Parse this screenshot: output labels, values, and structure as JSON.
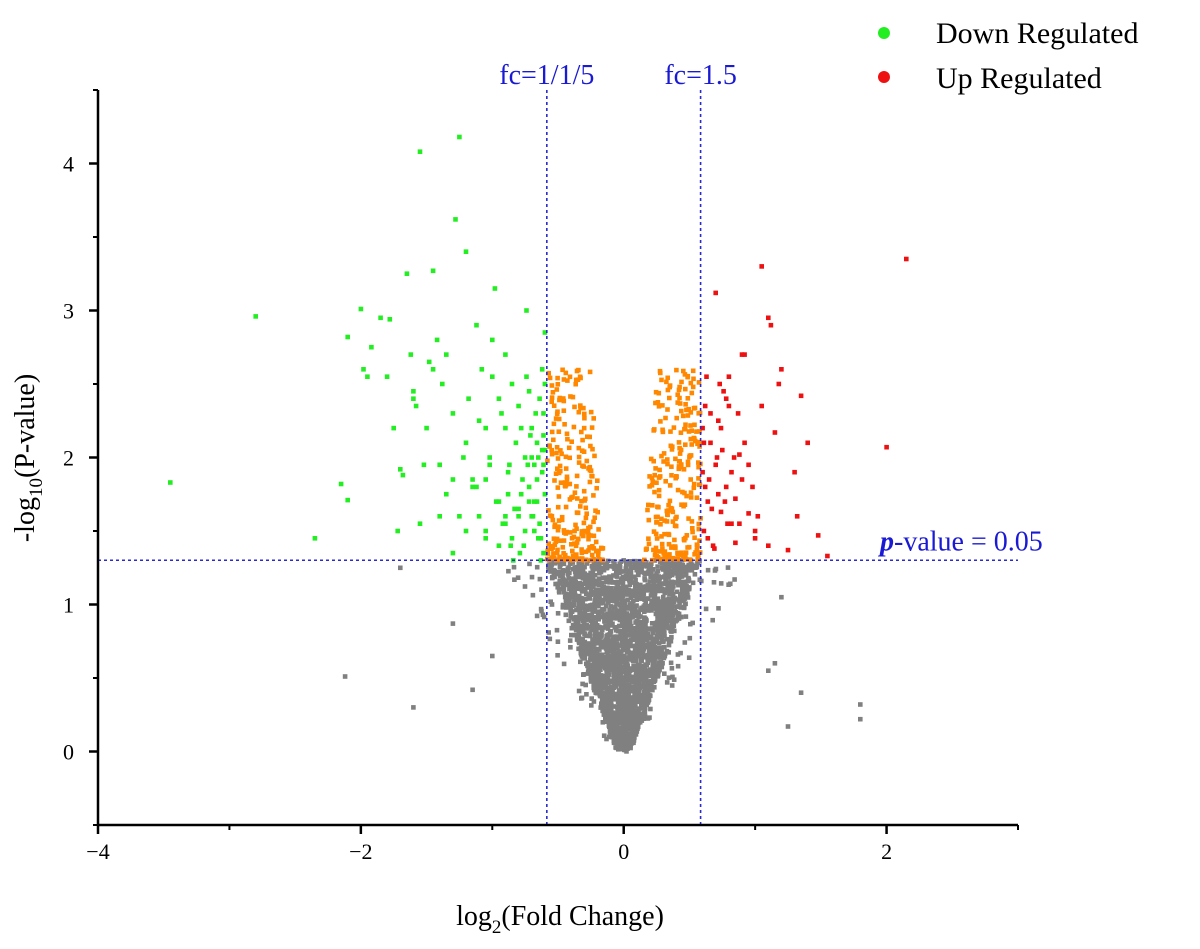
{
  "chart_data": {
    "type": "scatter",
    "title": "",
    "xlabel_base": "log",
    "xlabel_sub": "2",
    "xlabel_rest": "(Fold Change)",
    "ylabel_pre": "-log",
    "ylabel_sub": "10",
    "ylabel_rest": "(P-value)",
    "xlim": [
      -4,
      3
    ],
    "ylim": [
      -0.5,
      4.5
    ],
    "xticks": [
      -4,
      -2,
      0,
      2
    ],
    "yticks": [
      0,
      1,
      2,
      3,
      4
    ],
    "x_tick_labels": [
      "−4",
      "−2",
      "0",
      "2"
    ],
    "y_tick_labels": [
      "0",
      "1",
      "2",
      "3",
      "4"
    ],
    "reference_lines": {
      "vertical": [
        {
          "x": -0.585,
          "label": "fc=1/1/5"
        },
        {
          "x": 0.585,
          "label": "fc=1.5"
        }
      ],
      "horizontal": [
        {
          "y": 1.301,
          "label_bold": "p",
          "label_rest": "-value = 0.05"
        }
      ]
    },
    "colors": {
      "down": "#22ee22",
      "up": "#ee1111",
      "fc_only": "#ff8800",
      "ns": "#808080",
      "ref_line": "#2a2ad0"
    },
    "legend": {
      "placement": "top-right",
      "entries": [
        {
          "name": "Down Regulated",
          "color": "#22ee22"
        },
        {
          "name": "Up Regulated",
          "color": "#ee1111"
        }
      ]
    },
    "series": [
      {
        "name": "Down Regulated",
        "color": "#22ee22",
        "x": [
          -3.45,
          -2.8,
          -2.35,
          -2.15,
          -2.1,
          -2.1,
          -2.0,
          -1.98,
          -1.95,
          -1.92,
          -1.85,
          -1.8,
          -1.78,
          -1.72,
          -1.7,
          -1.68,
          -1.65,
          -1.62,
          -1.6,
          -1.55,
          -1.52,
          -1.5,
          -1.45,
          -1.42,
          -1.4,
          -1.38,
          -1.35,
          -1.3,
          -1.3,
          -1.28,
          -1.25,
          -1.22,
          -1.2,
          -1.2,
          -1.18,
          -1.15,
          -1.12,
          -1.1,
          -1.08,
          -1.05,
          -1.05,
          -1.02,
          -1.0,
          -0.98,
          -0.95,
          -0.95,
          -0.92,
          -0.9,
          -0.9,
          -0.88,
          -0.85,
          -0.85,
          -0.82,
          -0.8,
          -0.8,
          -0.78,
          -0.78,
          -0.75,
          -0.75,
          -0.72,
          -0.72,
          -0.7,
          -0.7,
          -0.68,
          -0.68,
          -0.66,
          -0.66,
          -0.64,
          -0.64,
          -0.62,
          -0.62,
          -0.61,
          -0.61,
          -0.6,
          -0.6,
          -0.6,
          -1.75,
          -1.58,
          -1.48,
          -1.35,
          -1.15,
          -0.97,
          -0.87,
          -0.76,
          -1.55,
          -1.45,
          -1.25,
          -1.05,
          -0.93,
          -0.83,
          -0.73,
          -0.65,
          -1.6,
          -1.4,
          -1.1,
          -1.0,
          -0.88,
          -0.74,
          -0.67,
          -1.2,
          -0.95,
          -0.8,
          -0.7,
          -0.63,
          -1.3,
          -1.05,
          -0.9,
          -0.77,
          -0.69,
          -0.62,
          -1.12,
          -0.86,
          -0.72,
          -0.65,
          -1.02,
          -0.84,
          -0.71,
          -0.61,
          -0.9,
          -0.79,
          -0.68,
          -0.63,
          -0.6,
          -0.74,
          -0.66,
          -0.61
        ],
        "y": [
          1.83,
          2.96,
          1.45,
          1.82,
          1.71,
          2.82,
          3.01,
          2.6,
          2.55,
          2.75,
          2.95,
          2.55,
          2.94,
          1.5,
          1.92,
          1.88,
          3.25,
          2.7,
          2.4,
          4.08,
          1.95,
          2.2,
          3.27,
          2.8,
          1.6,
          2.5,
          2.7,
          1.35,
          2.3,
          3.62,
          4.18,
          2.0,
          1.5,
          3.4,
          2.4,
          1.8,
          2.9,
          1.6,
          2.6,
          1.45,
          2.2,
          2.0,
          2.8,
          3.15,
          1.7,
          2.4,
          1.55,
          2.2,
          2.7,
          1.9,
          1.45,
          2.5,
          2.1,
          1.6,
          2.35,
          1.75,
          2.2,
          1.5,
          2.0,
          1.8,
          2.45,
          1.6,
          2.2,
          1.5,
          1.95,
          1.7,
          2.1,
          1.55,
          2.4,
          1.9,
          2.6,
          1.35,
          2.15,
          1.75,
          2.5,
          2.85,
          2.2,
          2.35,
          2.65,
          1.75,
          1.85,
          1.7,
          1.95,
          1.4,
          1.55,
          2.6,
          1.6,
          1.85,
          2.3,
          1.65,
          1.95,
          1.45,
          2.45,
          1.95,
          2.25,
          2.55,
          1.75,
          2.55,
          2.3,
          2.1,
          1.4,
          1.65,
          2.0,
          1.3,
          1.85,
          1.5,
          1.6,
          1.85,
          1.6,
          2.05,
          1.8,
          1.4,
          1.7,
          2.0,
          1.95,
          1.3,
          2.15,
          1.95,
          1.55,
          1.35,
          1.7,
          1.45,
          2.05,
          3.0,
          1.85,
          2.3
        ]
      },
      {
        "name": "Up Regulated",
        "color": "#ee1111",
        "x": [
          2.15,
          2.0,
          1.55,
          1.48,
          1.4,
          1.35,
          1.3,
          1.25,
          1.2,
          1.15,
          1.1,
          1.05,
          1.0,
          0.95,
          0.92,
          0.9,
          0.88,
          0.85,
          0.82,
          0.8,
          0.78,
          0.76,
          0.74,
          0.72,
          0.7,
          0.68,
          0.66,
          0.64,
          0.62,
          0.61,
          0.6,
          0.6,
          0.7,
          0.75,
          0.8,
          0.85,
          0.9,
          0.95,
          1.0,
          1.05,
          1.1,
          0.65,
          0.72,
          0.78,
          0.84,
          0.92,
          1.02,
          1.12,
          0.63,
          0.69,
          0.74,
          0.82,
          0.88,
          0.98,
          0.61,
          0.67,
          0.73,
          0.79,
          0.87,
          0.64,
          0.71,
          0.77,
          0.66,
          0.62,
          1.18,
          1.32
        ],
        "y": [
          3.35,
          2.07,
          1.33,
          1.47,
          2.1,
          2.42,
          1.9,
          1.37,
          2.6,
          2.17,
          2.95,
          3.3,
          1.5,
          1.62,
          2.7,
          1.85,
          2.02,
          1.42,
          1.55,
          2.55,
          1.8,
          2.45,
          1.63,
          2.25,
          1.95,
          1.4,
          2.1,
          1.7,
          2.35,
          1.5,
          1.9,
          2.2,
          3.12,
          2.05,
          2.35,
          1.72,
          2.7,
          1.95,
          1.45,
          2.35,
          1.4,
          1.85,
          1.75,
          2.4,
          2.0,
          2.1,
          1.6,
          2.9,
          2.55,
          1.38,
          2.2,
          1.9,
          1.55,
          1.8,
          2.1,
          1.65,
          2.5,
          1.55,
          2.3,
          1.45,
          2.0,
          1.7,
          2.3,
          1.8,
          2.5,
          1.6
        ]
      }
    ],
    "fc_only_region": {
      "x_min": 0.15,
      "x_max": 0.585,
      "y_min": 1.301,
      "y_max": 2.6,
      "count": 500
    },
    "ns_region": {
      "y_min": 0.0,
      "y_max": 1.301,
      "count": 2600
    }
  }
}
